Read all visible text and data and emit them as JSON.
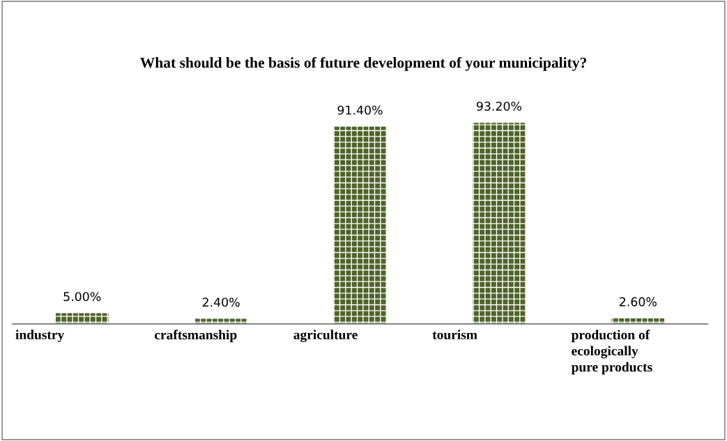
{
  "chart_data": {
    "type": "bar",
    "title": "What should be the basis of future development of your municipality?",
    "categories": [
      "industry",
      "craftsmanship",
      "agriculture",
      "tourism",
      "production of\necologically\npure products"
    ],
    "values": [
      5.0,
      2.4,
      91.4,
      93.2,
      2.6
    ],
    "value_labels": [
      "5.00%",
      "2.40%",
      "91.40%",
      "93.20%",
      "2.60%"
    ],
    "color": "#4f6228"
  }
}
